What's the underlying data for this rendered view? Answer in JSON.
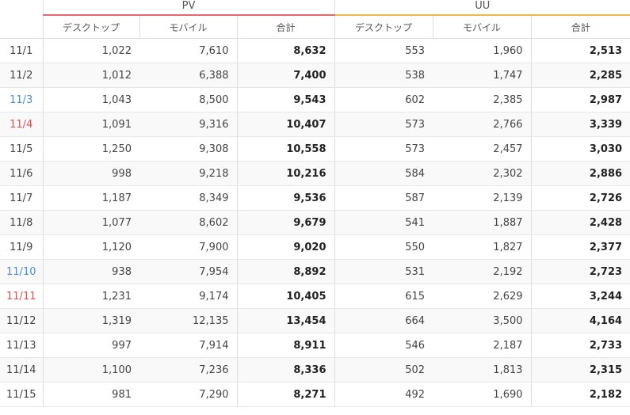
{
  "groups": {
    "pv": "PV",
    "uu": "UU"
  },
  "columns": {
    "desktop": "デスクトップ",
    "mobile": "モバイル",
    "total": "合計"
  },
  "rows": [
    {
      "date": "11/1",
      "type": "weekday",
      "pv_d": "1,022",
      "pv_m": "7,610",
      "pv_t": "8,632",
      "uu_d": "553",
      "uu_m": "1,960",
      "uu_t": "2,513"
    },
    {
      "date": "11/2",
      "type": "weekday",
      "pv_d": "1,012",
      "pv_m": "6,388",
      "pv_t": "7,400",
      "uu_d": "538",
      "uu_m": "1,747",
      "uu_t": "2,285"
    },
    {
      "date": "11/3",
      "type": "sat",
      "pv_d": "1,043",
      "pv_m": "8,500",
      "pv_t": "9,543",
      "uu_d": "602",
      "uu_m": "2,385",
      "uu_t": "2,987"
    },
    {
      "date": "11/4",
      "type": "sun",
      "pv_d": "1,091",
      "pv_m": "9,316",
      "pv_t": "10,407",
      "uu_d": "573",
      "uu_m": "2,766",
      "uu_t": "3,339"
    },
    {
      "date": "11/5",
      "type": "weekday",
      "pv_d": "1,250",
      "pv_m": "9,308",
      "pv_t": "10,558",
      "uu_d": "573",
      "uu_m": "2,457",
      "uu_t": "3,030"
    },
    {
      "date": "11/6",
      "type": "weekday",
      "pv_d": "998",
      "pv_m": "9,218",
      "pv_t": "10,216",
      "uu_d": "584",
      "uu_m": "2,302",
      "uu_t": "2,886"
    },
    {
      "date": "11/7",
      "type": "weekday",
      "pv_d": "1,187",
      "pv_m": "8,349",
      "pv_t": "9,536",
      "uu_d": "587",
      "uu_m": "2,139",
      "uu_t": "2,726"
    },
    {
      "date": "11/8",
      "type": "weekday",
      "pv_d": "1,077",
      "pv_m": "8,602",
      "pv_t": "9,679",
      "uu_d": "541",
      "uu_m": "1,887",
      "uu_t": "2,428"
    },
    {
      "date": "11/9",
      "type": "weekday",
      "pv_d": "1,120",
      "pv_m": "7,900",
      "pv_t": "9,020",
      "uu_d": "550",
      "uu_m": "1,827",
      "uu_t": "2,377"
    },
    {
      "date": "11/10",
      "type": "sat",
      "pv_d": "938",
      "pv_m": "7,954",
      "pv_t": "8,892",
      "uu_d": "531",
      "uu_m": "2,192",
      "uu_t": "2,723"
    },
    {
      "date": "11/11",
      "type": "sun",
      "pv_d": "1,231",
      "pv_m": "9,174",
      "pv_t": "10,405",
      "uu_d": "615",
      "uu_m": "2,629",
      "uu_t": "3,244"
    },
    {
      "date": "11/12",
      "type": "weekday",
      "pv_d": "1,319",
      "pv_m": "12,135",
      "pv_t": "13,454",
      "uu_d": "664",
      "uu_m": "3,500",
      "uu_t": "4,164"
    },
    {
      "date": "11/13",
      "type": "weekday",
      "pv_d": "997",
      "pv_m": "7,914",
      "pv_t": "8,911",
      "uu_d": "546",
      "uu_m": "2,187",
      "uu_t": "2,733"
    },
    {
      "date": "11/14",
      "type": "weekday",
      "pv_d": "1,100",
      "pv_m": "7,236",
      "pv_t": "8,336",
      "uu_d": "502",
      "uu_m": "1,813",
      "uu_t": "2,315"
    },
    {
      "date": "11/15",
      "type": "weekday",
      "pv_d": "981",
      "pv_m": "7,290",
      "pv_t": "8,271",
      "uu_d": "492",
      "uu_m": "1,690",
      "uu_t": "2,182"
    }
  ]
}
